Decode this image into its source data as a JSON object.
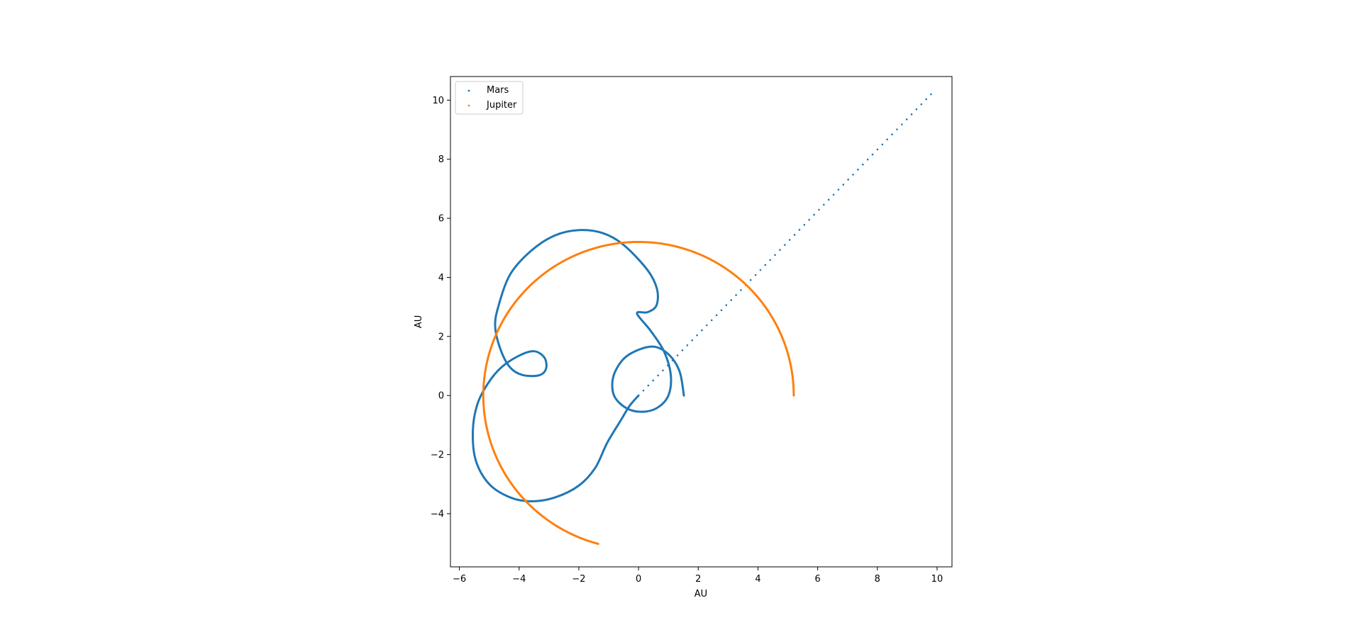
{
  "chart_data": {
    "type": "scatter",
    "xlabel": "AU",
    "ylabel": "AU",
    "xlim": [
      -6.3,
      10.5
    ],
    "ylim": [
      -5.8,
      10.8
    ],
    "x_ticks": [
      -6,
      -4,
      -2,
      0,
      2,
      4,
      6,
      8,
      10
    ],
    "y_ticks": [
      -4,
      -2,
      0,
      2,
      4,
      6,
      8,
      10
    ],
    "x_tick_labels": [
      "−6",
      "−4",
      "−2",
      "0",
      "2",
      "4",
      "6",
      "8",
      "10"
    ],
    "y_tick_labels": [
      "−4",
      "−2",
      "0",
      "2",
      "4",
      "6",
      "8",
      "10"
    ],
    "grid": false,
    "legend_position": "upper left",
    "series": [
      {
        "name": "Mars",
        "color": "#1f77b4",
        "marker_size": "small",
        "trajectory": [
          [
            1.52,
            0.0
          ],
          [
            1.38,
            0.8
          ],
          [
            1.05,
            1.35
          ],
          [
            0.55,
            1.65
          ],
          [
            0.0,
            1.55
          ],
          [
            -0.52,
            1.22
          ],
          [
            -0.85,
            0.62
          ],
          [
            -0.82,
            0.0
          ],
          [
            -0.42,
            -0.42
          ],
          [
            0.1,
            -0.55
          ],
          [
            0.62,
            -0.42
          ],
          [
            1.0,
            0.0
          ],
          [
            1.08,
            0.7
          ],
          [
            0.85,
            1.5
          ],
          [
            0.4,
            2.2
          ],
          [
            -0.05,
            2.78
          ],
          [
            0.3,
            2.82
          ],
          [
            0.6,
            3.05
          ],
          [
            0.62,
            3.6
          ],
          [
            0.3,
            4.25
          ],
          [
            -0.5,
            5.1
          ],
          [
            -1.2,
            5.5
          ],
          [
            -2.0,
            5.6
          ],
          [
            -2.8,
            5.42
          ],
          [
            -3.6,
            4.9
          ],
          [
            -4.3,
            4.1
          ],
          [
            -4.7,
            3.0
          ],
          [
            -4.8,
            2.3
          ],
          [
            -4.6,
            1.5
          ],
          [
            -4.3,
            0.95
          ],
          [
            -3.9,
            0.7
          ],
          [
            -3.35,
            0.68
          ],
          [
            -3.1,
            0.9
          ],
          [
            -3.15,
            1.28
          ],
          [
            -3.5,
            1.5
          ],
          [
            -4.0,
            1.35
          ],
          [
            -4.6,
            0.95
          ],
          [
            -5.05,
            0.4
          ],
          [
            -5.4,
            -0.3
          ],
          [
            -5.55,
            -1.2
          ],
          [
            -5.45,
            -2.2
          ],
          [
            -5.0,
            -3.0
          ],
          [
            -4.3,
            -3.45
          ],
          [
            -3.6,
            -3.58
          ],
          [
            -2.8,
            -3.45
          ],
          [
            -2.0,
            -3.05
          ],
          [
            -1.45,
            -2.45
          ],
          [
            -1.05,
            -1.6
          ],
          [
            -0.6,
            -0.85
          ],
          [
            -0.3,
            -0.35
          ],
          [
            0.0,
            0.0
          ],
          [
            9.8,
            10.2
          ]
        ]
      },
      {
        "name": "Jupiter",
        "color": "#ff7f0e",
        "marker_size": "small",
        "trajectory": [
          [
            5.2,
            0.0
          ],
          [
            0.0,
            5.2
          ],
          [
            -5.2,
            0.0
          ],
          [
            -1.35,
            -5.02
          ]
        ]
      }
    ]
  }
}
